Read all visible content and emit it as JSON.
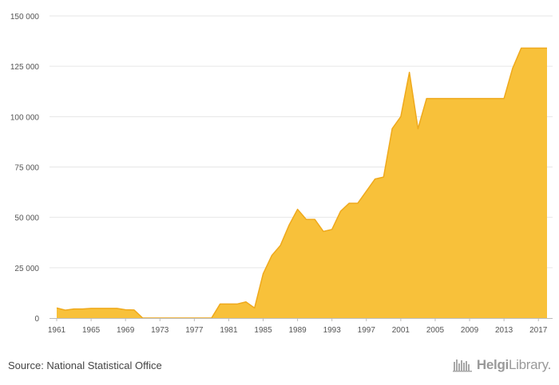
{
  "footer": {
    "source_text": "Source: National Statistical Office",
    "brand_name_part1": "Helgi",
    "brand_name_part2": "Library.",
    "brand_logo": "bookshelf-icon"
  },
  "colors": {
    "area_fill": "#F8C13A",
    "area_line": "#EFA91C",
    "grid": "#E6E6E6",
    "axis": "#BBBBBB"
  },
  "chart_data": {
    "type": "area",
    "title": "",
    "xlabel": "",
    "ylabel": "",
    "ylim": [
      0,
      150000
    ],
    "xlim": [
      1961,
      2018
    ],
    "grid": true,
    "legend": "none",
    "yticks": [
      {
        "value": 0,
        "label": "0"
      },
      {
        "value": 25000,
        "label": "25 000"
      },
      {
        "value": 50000,
        "label": "50 000"
      },
      {
        "value": 75000,
        "label": "75 000"
      },
      {
        "value": 100000,
        "label": "100 000"
      },
      {
        "value": 125000,
        "label": "125 000"
      },
      {
        "value": 150000,
        "label": "150 000"
      }
    ],
    "xticks": [
      1961,
      1965,
      1969,
      1973,
      1977,
      1981,
      1985,
      1989,
      1993,
      1997,
      2001,
      2005,
      2009,
      2013,
      2017
    ],
    "series": [
      {
        "values": [
          [
            1961,
            5000
          ],
          [
            1962,
            3900
          ],
          [
            1963,
            4500
          ],
          [
            1964,
            4500
          ],
          [
            1965,
            4800
          ],
          [
            1966,
            4800
          ],
          [
            1967,
            4800
          ],
          [
            1968,
            4800
          ],
          [
            1969,
            4100
          ],
          [
            1970,
            4000
          ],
          [
            1971,
            0
          ],
          [
            1972,
            0
          ],
          [
            1973,
            0
          ],
          [
            1974,
            0
          ],
          [
            1975,
            0
          ],
          [
            1976,
            0
          ],
          [
            1977,
            0
          ],
          [
            1978,
            0
          ],
          [
            1979,
            0
          ],
          [
            1980,
            7000
          ],
          [
            1981,
            7000
          ],
          [
            1982,
            7000
          ],
          [
            1983,
            8000
          ],
          [
            1984,
            5000
          ],
          [
            1985,
            22000
          ],
          [
            1986,
            31000
          ],
          [
            1987,
            36000
          ],
          [
            1988,
            46000
          ],
          [
            1989,
            54000
          ],
          [
            1990,
            49000
          ],
          [
            1991,
            49000
          ],
          [
            1992,
            43000
          ],
          [
            1993,
            44000
          ],
          [
            1994,
            53000
          ],
          [
            1995,
            57000
          ],
          [
            1996,
            57000
          ],
          [
            1997,
            63000
          ],
          [
            1998,
            69000
          ],
          [
            1999,
            70000
          ],
          [
            2000,
            94000
          ],
          [
            2001,
            100000
          ],
          [
            2002,
            122000
          ],
          [
            2003,
            94000
          ],
          [
            2004,
            109000
          ],
          [
            2005,
            109000
          ],
          [
            2006,
            109000
          ],
          [
            2007,
            109000
          ],
          [
            2008,
            109000
          ],
          [
            2009,
            109000
          ],
          [
            2010,
            109000
          ],
          [
            2011,
            109000
          ],
          [
            2012,
            109000
          ],
          [
            2013,
            109000
          ],
          [
            2014,
            124000
          ],
          [
            2015,
            134000
          ],
          [
            2016,
            134000
          ],
          [
            2017,
            134000
          ],
          [
            2018,
            134000
          ]
        ]
      }
    ]
  }
}
